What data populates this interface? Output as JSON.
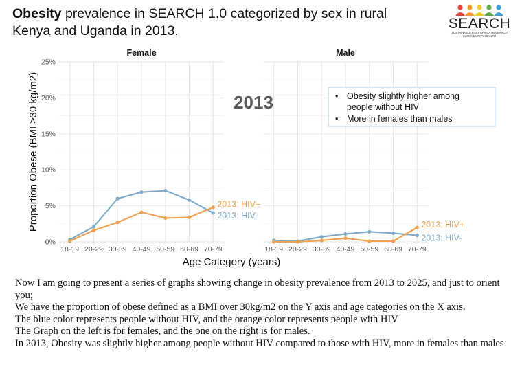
{
  "title": {
    "bold": "Obesity",
    "rest": " prevalence in SEARCH 1.0 categorized by sex in rural Kenya and Uganda in 2013."
  },
  "logo": {
    "name": "SEARCH",
    "tagline_1": "SUSTAINABLE EAST AFRICA RESEARCH",
    "tagline_2": "IN COMMUNITY HEALTH",
    "people_colors": [
      "#e2463c",
      "#f39c2b",
      "#f3cb3a",
      "#5ba845",
      "#3a9fd8"
    ]
  },
  "chart_data": {
    "type": "line",
    "categories": [
      "18-19",
      "20-29",
      "30-39",
      "40-49",
      "50-59",
      "60-69",
      "70-79"
    ],
    "xlabel": "Age Category (years)",
    "ylabel": "Proportion Obese (BMI ≥30 kg/m2)",
    "ylim": [
      0,
      25
    ],
    "yticks": [
      0,
      5,
      10,
      15,
      20,
      25
    ],
    "ytick_labels": [
      "0%",
      "5%",
      "10%",
      "15%",
      "20%",
      "25%"
    ],
    "grid": true,
    "big_label": "2013",
    "panels": [
      {
        "name": "Female",
        "series": [
          {
            "name": "2013: HIV-",
            "color": "#7eaacb",
            "values": [
              0.3,
              2.1,
              6.0,
              6.9,
              7.1,
              5.8,
              4.0
            ]
          },
          {
            "name": "2013: HIV+",
            "color": "#f0a14f",
            "values": [
              0.1,
              1.6,
              2.7,
              4.1,
              3.3,
              3.4,
              4.8
            ]
          }
        ]
      },
      {
        "name": "Male",
        "series": [
          {
            "name": "2013: HIV-",
            "color": "#7eaacb",
            "values": [
              0.2,
              0.1,
              0.7,
              1.1,
              1.4,
              1.2,
              0.9
            ]
          },
          {
            "name": "2013: HIV+",
            "color": "#f0a14f",
            "values": [
              0.0,
              0.0,
              0.2,
              0.5,
              0.1,
              0.1,
              2.0
            ]
          }
        ]
      }
    ],
    "annotation_box": {
      "bullets": [
        "Obesity slightly higher among",
        "people without HIV",
        "More in females than males"
      ]
    }
  },
  "notes": [
    "Now I am going to present a series of graphs showing change in obesity prevalence from 2013 to 2025, and just to orient you;",
    "We have the proportion of obese defined as a BMI over 30kg/m2 on the Y axis and age categories on the X axis.",
    "The blue color represents people without HIV, and the orange color represents people with HIV",
    "The Graph on the left is for females, and the one on the right is for males.",
    "In 2013, Obesity was slightly higher among people without HIV compared to those with HIV,  more in females than males"
  ]
}
